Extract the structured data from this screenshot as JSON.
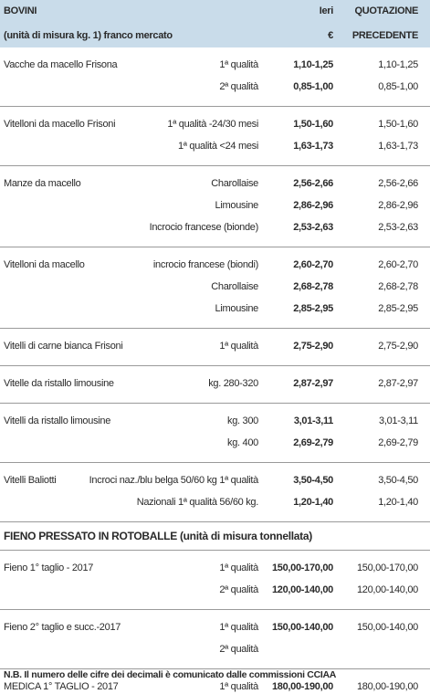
{
  "header": {
    "title": "BOVINI",
    "unit": "(unità di misura kg. 1) franco mercato",
    "col_ieri": "Ieri",
    "col_ieri_unit": "€",
    "col_prev": "QUOTAZIONE",
    "col_prev_sub": "PRECEDENTE"
  },
  "bovini": {
    "groups": [
      {
        "name": "Vacche da macello Frisona",
        "rows": [
          {
            "qualifier": "1ª qualità",
            "ieri": "1,10-1,25",
            "precedente": "1,10-1,25"
          },
          {
            "qualifier": "2ª qualità",
            "ieri": "0,85-1,00",
            "precedente": "0,85-1,00"
          }
        ]
      },
      {
        "name": "Vitelloni da macello Frisoni",
        "rows": [
          {
            "qualifier": "1ª qualità -24/30 mesi",
            "ieri": "1,50-1,60",
            "precedente": "1,50-1,60"
          },
          {
            "qualifier": "1ª qualità <24 mesi",
            "ieri": "1,63-1,73",
            "precedente": "1,63-1,73"
          }
        ]
      },
      {
        "name": "Manze da macello",
        "rows": [
          {
            "qualifier": "Charollaise",
            "ieri": "2,56-2,66",
            "precedente": "2,56-2,66"
          },
          {
            "qualifier": "Limousine",
            "ieri": "2,86-2,96",
            "precedente": "2,86-2,96"
          },
          {
            "qualifier": "Incrocio francese (bionde)",
            "ieri": "2,53-2,63",
            "precedente": "2,53-2,63"
          }
        ]
      },
      {
        "name": "Vitelloni da macello",
        "rows": [
          {
            "qualifier": "incrocio francese (biondi)",
            "ieri": "2,60-2,70",
            "precedente": "2,60-2,70"
          },
          {
            "qualifier": "Charollaise",
            "ieri": "2,68-2,78",
            "precedente": "2,68-2,78"
          },
          {
            "qualifier": "Limousine",
            "ieri": "2,85-2,95",
            "precedente": "2,85-2,95"
          }
        ]
      },
      {
        "name": "Vitelli di carne bianca Frisoni",
        "rows": [
          {
            "qualifier": "1ª qualità",
            "ieri": "2,75-2,90",
            "precedente": "2,75-2,90"
          }
        ]
      },
      {
        "name": "Vitelle da ristallo limousine",
        "rows": [
          {
            "qualifier": "kg. 280-320",
            "ieri": "2,87-2,97",
            "precedente": "2,87-2,97"
          }
        ]
      },
      {
        "name": "Vitelli da ristallo limousine",
        "rows": [
          {
            "qualifier": "kg. 300",
            "ieri": "3,01-3,11",
            "precedente": "3,01-3,11"
          },
          {
            "qualifier": "kg. 400",
            "ieri": "2,69-2,79",
            "precedente": "2,69-2,79"
          }
        ]
      },
      {
        "name": "Vitelli Baliotti",
        "rows": [
          {
            "qualifier": "Incroci naz./blu belga 50/60 kg 1ª qualità",
            "ieri": "3,50-4,50",
            "precedente": "3,50-4,50"
          },
          {
            "qualifier": "Nazionali 1ª qualità 56/60 kg.",
            "ieri": "1,20-1,40",
            "precedente": "1,20-1,40"
          }
        ]
      }
    ]
  },
  "fieno": {
    "heading": "FIENO PRESSATO IN ROTOBALLE (unità di misura tonnellata)",
    "groups": [
      {
        "name": "Fieno 1° taglio - 2017",
        "rows": [
          {
            "qualifier": "1ª qualità",
            "ieri": "150,00-170,00",
            "precedente": "150,00-170,00"
          },
          {
            "qualifier": "2ª qualità",
            "ieri": "120,00-140,00",
            "precedente": "120,00-140,00"
          }
        ]
      },
      {
        "name": "Fieno 2° taglio e succ.-2017",
        "rows": [
          {
            "qualifier": "1ª qualità",
            "ieri": "150,00-140,00",
            "precedente": "150,00-140,00"
          },
          {
            "qualifier": "2ª qualità"
          }
        ]
      },
      {
        "name": "MEDICA 1° TAGLIO - 2017",
        "rows": [
          {
            "qualifier": "1ª qualità",
            "ieri": "180,00-190,00",
            "precedente": "180,00-190,00"
          }
        ]
      }
    ]
  },
  "note": "N.B. Il numero delle cifre dei decimali è comunicato dalle commissioni CCIAA"
}
